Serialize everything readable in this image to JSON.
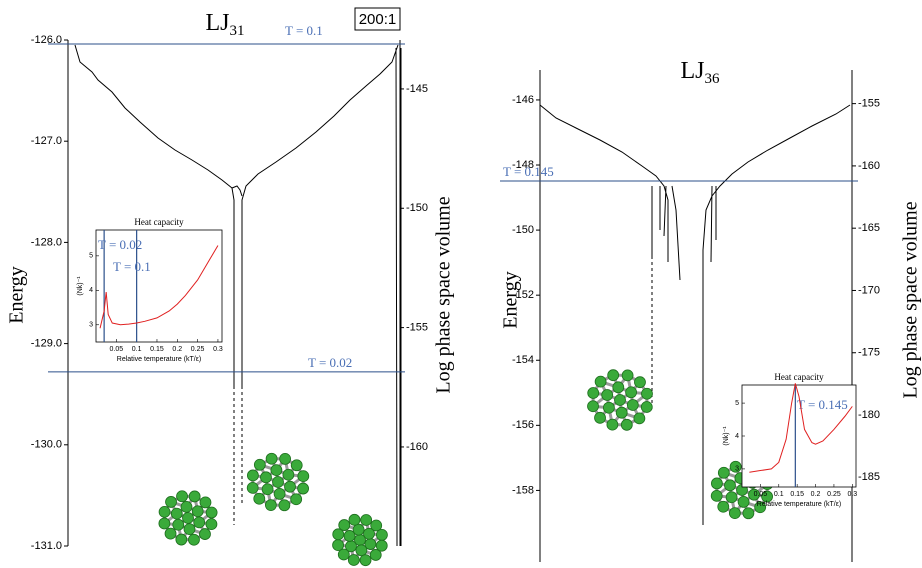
{
  "chart_data": [
    {
      "type": "disconnectivity",
      "title": "LJ",
      "title_sub": "31",
      "ylabel": "Energy",
      "y2label": "Log phase space volume",
      "ylim": [
        -131,
        -126
      ],
      "yticks": [
        {
          "value": -126,
          "label": "-126.0"
        },
        {
          "value": -127,
          "label": "-127.0"
        },
        {
          "value": -128,
          "label": "-128.0"
        },
        {
          "value": -129,
          "label": "-129.0"
        },
        {
          "value": -130,
          "label": "-130.0"
        },
        {
          "value": -131,
          "label": "-131.0"
        }
      ],
      "y2lim": [
        -164.15,
        -142.95
      ],
      "y2ticks": [
        -145,
        -150,
        -155,
        -160
      ],
      "lines": [
        {
          "value": -126.04,
          "label": "T = 0.1"
        },
        {
          "value": -129.28,
          "label": "T = 0.02"
        }
      ],
      "annotations": [
        "200:1"
      ],
      "inset": {
        "type": "line",
        "title": "Heat capacity",
        "xlabel": "Relative temperature (kT/ε)",
        "ylabel": "(Nk)⁻¹",
        "xlim": [
          0,
          0.31
        ],
        "ylim": [
          2.5,
          5.75
        ],
        "xticks": [
          0.05,
          0.1,
          0.15,
          0.2,
          0.25,
          0.3
        ],
        "yticks": [
          3,
          4,
          5
        ],
        "x": [
          0.01,
          0.02,
          0.025,
          0.03,
          0.04,
          0.06,
          0.08,
          0.1,
          0.12,
          0.15,
          0.18,
          0.2,
          0.22,
          0.25,
          0.28,
          0.3
        ],
        "series": [
          {
            "color": "#e02020",
            "values": [
              2.9,
              3.4,
              3.95,
              3.3,
              3.05,
              3.0,
              3.02,
              3.05,
              3.1,
              3.2,
              3.4,
              3.6,
              3.85,
              4.3,
              4.9,
              5.3
            ]
          }
        ],
        "lines": [
          {
            "value": 0.02,
            "label": "T = 0.02"
          },
          {
            "value": 0.1,
            "label": "T = 0.1"
          }
        ]
      }
    },
    {
      "type": "disconnectivity",
      "title": "LJ",
      "title_sub": "36",
      "ylabel": "Energy",
      "y2label": "Log phase space volume",
      "ylim": [
        -160.2,
        -145.08
      ],
      "yticks": [
        -146,
        -148,
        -150,
        -152,
        -154,
        -156,
        -158
      ],
      "y2lim": [
        -191.8,
        -152.3
      ],
      "y2ticks": [
        -155,
        -160,
        -165,
        -170,
        -175,
        -180,
        -185
      ],
      "lines": [
        {
          "value": -148.49,
          "label": "T = 0.145"
        }
      ],
      "inset": {
        "type": "line",
        "title": "Heat capacity",
        "xlabel": "Relative temperature (kT/ε)",
        "ylabel": "(Nk)⁻¹",
        "xlim": [
          0,
          0.31
        ],
        "ylim": [
          2.45,
          5.55
        ],
        "xticks": [
          0.05,
          0.1,
          0.15,
          0.2,
          0.25,
          0.3
        ],
        "yticks": [
          3,
          4,
          5
        ],
        "x": [
          0.02,
          0.05,
          0.08,
          0.1,
          0.12,
          0.135,
          0.145,
          0.155,
          0.17,
          0.19,
          0.2,
          0.22,
          0.25,
          0.28,
          0.3
        ],
        "series": [
          {
            "color": "#e02020",
            "values": [
              2.9,
              2.95,
              3.0,
              3.2,
              3.9,
              5.0,
              5.6,
              5.2,
              4.2,
              3.8,
              3.75,
              3.85,
              4.2,
              4.6,
              4.9
            ]
          }
        ],
        "lines": [
          {
            "value": 0.145,
            "label": "T = 0.145"
          }
        ]
      }
    }
  ]
}
